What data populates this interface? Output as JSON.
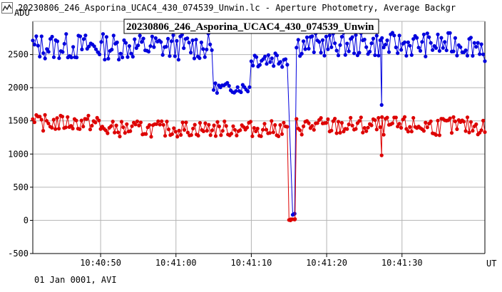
{
  "window": {
    "title": "20230806_246_Asporina_UCAC4_430_074539_Unwin.lc - Aperture Photometry, Average Backgr",
    "icon": "lightcurve-icon"
  },
  "footer": {
    "text": "01 Jan 0001, AVI"
  },
  "chart_data": {
    "type": "scatter",
    "title": "20230806_246_Asporina_UCAC4_430_074539_Unwin",
    "ylabel": "ADU",
    "xlabel": "UT",
    "ylim": [
      -500,
      3000
    ],
    "xlim": [
      "10:40:41",
      "10:41:41"
    ],
    "x_ticks": [
      "10:40:50",
      "10:41:00",
      "10:41:10",
      "10:41:20",
      "10:41:30"
    ],
    "y_ticks": [
      "-500",
      "0",
      "500",
      "1000",
      "1500",
      "2000",
      "2500"
    ],
    "grid": true,
    "colors": {
      "series1": "#0000dd",
      "series2": "#dd0000",
      "grid": "#b4b4b4",
      "axis": "#000000"
    },
    "series": [
      {
        "color": "#0000dd",
        "segments": [
          {
            "t": [
              "10:40:41",
              "10:41:05"
            ],
            "base": 2620,
            "amp": 200
          },
          {
            "t": [
              "10:41:05",
              "10:41:10"
            ],
            "base": 2000,
            "amp": 80
          },
          {
            "t": [
              "10:41:10",
              "10:41:15"
            ],
            "base": 2450,
            "amp": 150
          },
          {
            "t": [
              "10:41:15.5",
              "10:41:16"
            ],
            "base": 100,
            "amp": 20
          },
          {
            "t": [
              "10:41:16",
              "10:41:41"
            ],
            "base": 2650,
            "amp": 180
          }
        ],
        "dropouts": [
          {
            "t": "10:41:15.6",
            "y": 90
          },
          {
            "t": "10:41:27.3",
            "y": 1740
          }
        ],
        "end": {
          "t": "10:41:41",
          "y": 2400
        }
      },
      {
        "color": "#dd0000",
        "segments": [
          {
            "t": [
              "10:40:41",
              "10:40:50"
            ],
            "base": 1470,
            "amp": 120
          },
          {
            "t": [
              "10:40:50",
              "10:41:15"
            ],
            "base": 1380,
            "amp": 120
          },
          {
            "t": [
              "10:41:15",
              "10:41:16"
            ],
            "base": 10,
            "amp": 10
          },
          {
            "t": [
              "10:41:16",
              "10:41:41"
            ],
            "base": 1420,
            "amp": 140
          }
        ],
        "dropouts": [
          {
            "t": "10:41:15.2",
            "y": 0
          },
          {
            "t": "10:41:15.8",
            "y": 20
          },
          {
            "t": "10:41:27.3",
            "y": 980
          }
        ],
        "end": {
          "t": "10:41:41",
          "y": 1330
        }
      }
    ]
  }
}
